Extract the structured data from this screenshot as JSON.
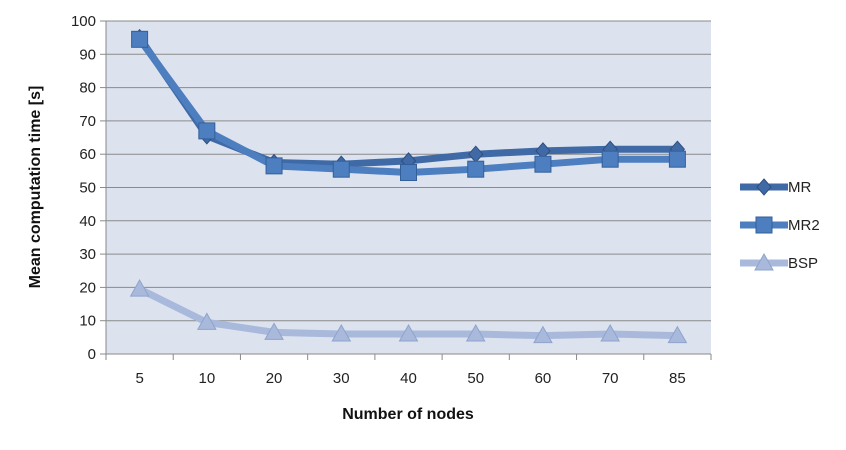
{
  "chart_data": {
    "type": "line",
    "title": "",
    "xlabel": "Number of nodes",
    "ylabel": "Mean computation  time [s]",
    "categories": [
      "5",
      "10",
      "20",
      "30",
      "40",
      "50",
      "60",
      "70",
      "85"
    ],
    "ylim": [
      0,
      100
    ],
    "yticks": [
      0,
      10,
      20,
      30,
      40,
      50,
      60,
      70,
      80,
      90,
      100
    ],
    "grid": true,
    "legend_position": "right",
    "series": [
      {
        "name": "MR",
        "values": [
          95,
          65.5,
          57.5,
          57,
          58,
          60,
          61,
          61.5,
          61.5
        ],
        "color": "#3F6AA6",
        "marker": "diamond"
      },
      {
        "name": "MR2",
        "values": [
          94.5,
          67,
          56.5,
          55.5,
          54.5,
          55.5,
          57,
          58.5,
          58.5
        ],
        "color": "#4C7EC0",
        "marker": "square"
      },
      {
        "name": "BSP",
        "values": [
          19.5,
          9.5,
          6.5,
          6,
          6,
          6,
          5.5,
          6,
          5.5
        ],
        "color": "#A8B9DB",
        "marker": "triangle"
      }
    ],
    "plot_background": "#DCE3EF"
  }
}
